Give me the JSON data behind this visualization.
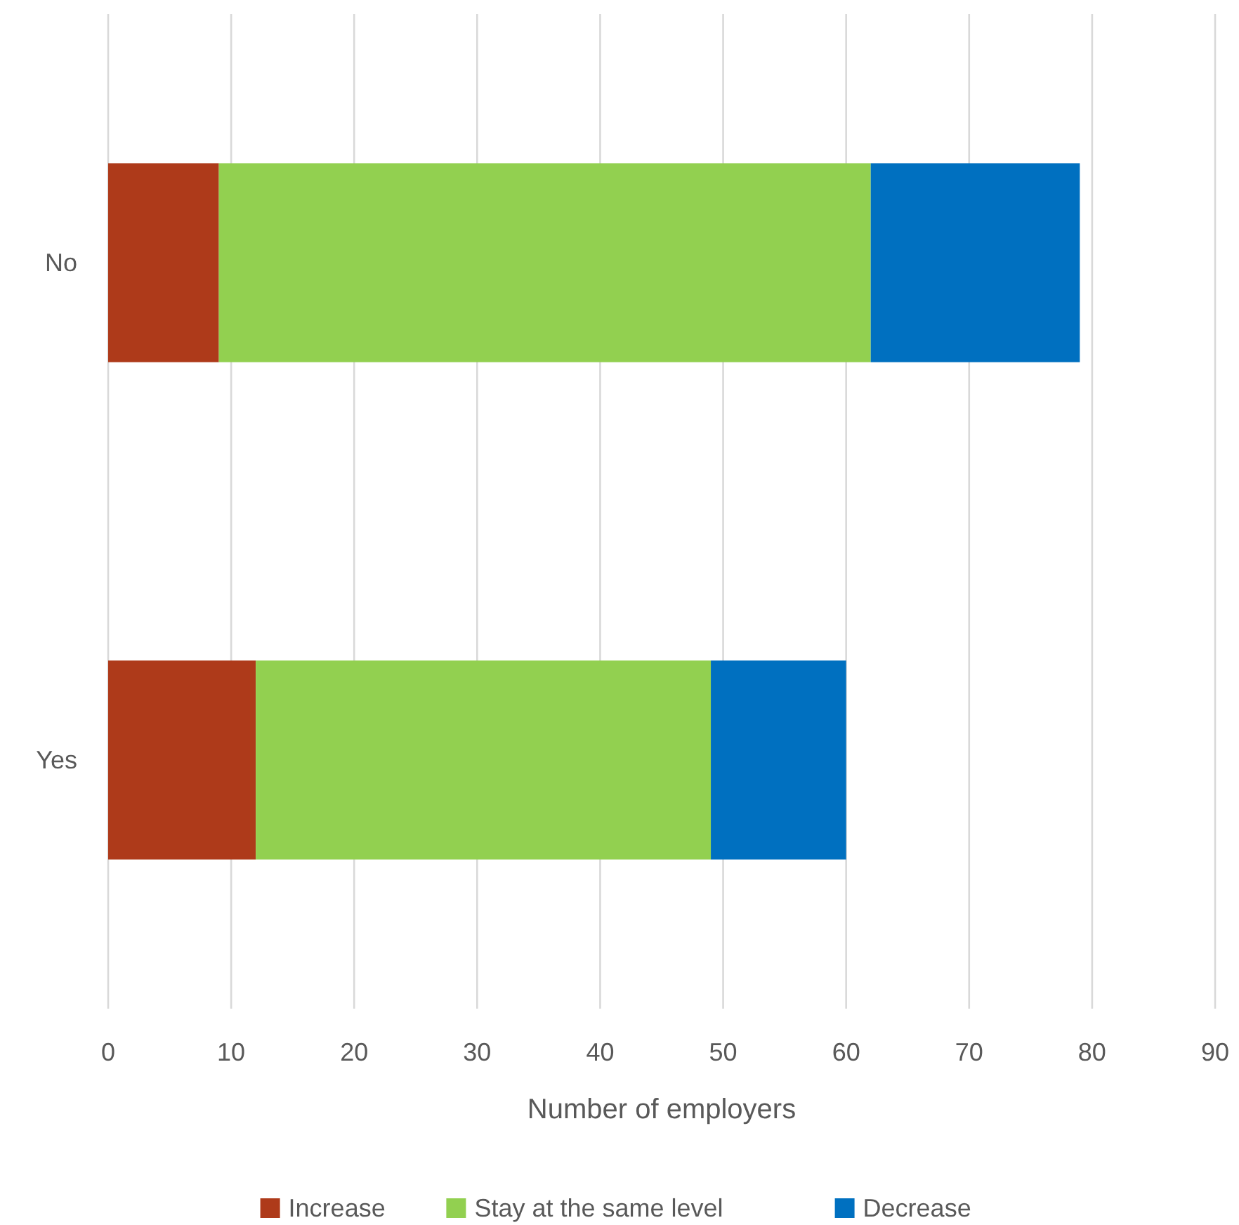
{
  "chart_data": {
    "type": "bar",
    "orientation": "horizontal",
    "stacked": true,
    "xlabel": "Number of employers",
    "categories": [
      "No",
      "Yes"
    ],
    "series": [
      {
        "name": "Increase",
        "color": "#ae3a1a",
        "values": [
          9,
          12
        ]
      },
      {
        "name": "Stay at the same level",
        "color": "#92d050",
        "values": [
          53,
          37
        ]
      },
      {
        "name": "Decrease",
        "color": "#0070c0",
        "values": [
          17,
          11
        ]
      }
    ],
    "xlim": [
      0,
      90
    ],
    "xticks": [
      0,
      10,
      20,
      30,
      40,
      50,
      60,
      70,
      80,
      90
    ],
    "grid": "x",
    "legend": "bottom"
  }
}
